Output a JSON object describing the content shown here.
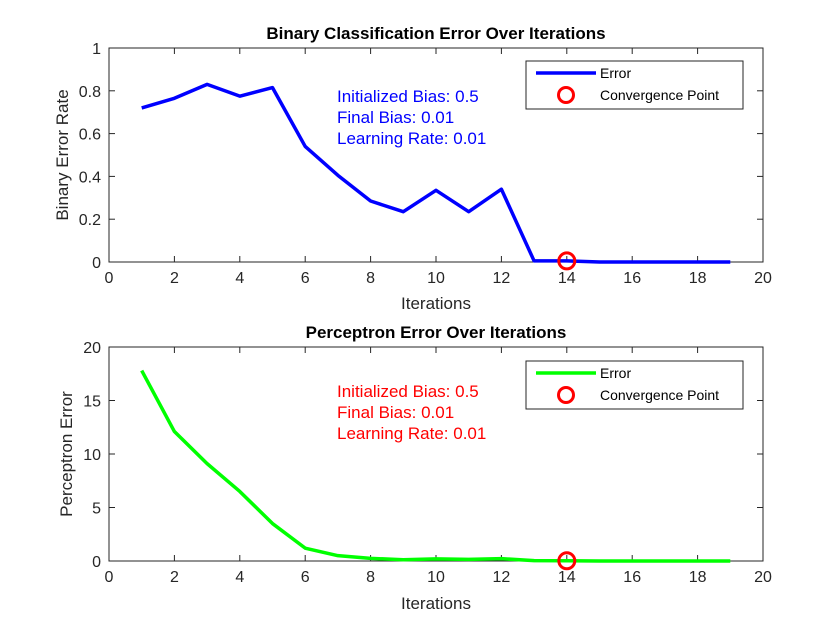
{
  "chart_data": [
    {
      "type": "line",
      "title": "Binary Classification Error Over Iterations",
      "xlabel": "Iterations",
      "ylabel": "Binary Error Rate",
      "xlim": [
        0,
        20
      ],
      "ylim": [
        0,
        1
      ],
      "xticks": [
        0,
        2,
        4,
        6,
        8,
        10,
        12,
        14,
        16,
        18,
        20
      ],
      "yticks": [
        0,
        0.2,
        0.4,
        0.6,
        0.8,
        1
      ],
      "ytick_labels": [
        "0",
        "0.2",
        "0.4",
        "0.6",
        "0.8",
        "1"
      ],
      "grid": false,
      "legend_position": "top-right",
      "series": [
        {
          "name": "Error",
          "color": "#0000ff",
          "x": [
            1,
            2,
            3,
            4,
            5,
            6,
            7,
            8,
            9,
            10,
            11,
            12,
            13,
            14,
            15,
            16,
            17,
            18,
            19
          ],
          "y": [
            0.72,
            0.765,
            0.83,
            0.775,
            0.815,
            0.54,
            0.405,
            0.285,
            0.235,
            0.335,
            0.235,
            0.34,
            0.005,
            0.005,
            0.0,
            0.0,
            0.0,
            0.0,
            0.0
          ]
        }
      ],
      "marker": {
        "name": "Convergence Point",
        "x": 14,
        "y": 0.005,
        "color": "#ff0000"
      },
      "annotation_color": "#0000ff",
      "annotations": [
        "Initialized Bias: 0.5",
        "Final Bias: 0.01",
        "Learning Rate: 0.01"
      ]
    },
    {
      "type": "line",
      "title": "Perceptron Error Over Iterations",
      "xlabel": "Iterations",
      "ylabel": "Perceptron Error",
      "xlim": [
        0,
        20
      ],
      "ylim": [
        0,
        20
      ],
      "xticks": [
        0,
        2,
        4,
        6,
        8,
        10,
        12,
        14,
        16,
        18,
        20
      ],
      "yticks": [
        0,
        5,
        10,
        15,
        20
      ],
      "ytick_labels": [
        "0",
        "5",
        "10",
        "15",
        "20"
      ],
      "grid": false,
      "legend_position": "top-right",
      "series": [
        {
          "name": "Error",
          "color": "#00ff00",
          "x": [
            1,
            2,
            3,
            4,
            5,
            6,
            7,
            8,
            9,
            10,
            11,
            12,
            13,
            14,
            15,
            16,
            17,
            18,
            19
          ],
          "y": [
            17.8,
            12.1,
            9.1,
            6.5,
            3.5,
            1.2,
            0.5,
            0.25,
            0.12,
            0.2,
            0.15,
            0.22,
            0.03,
            0.02,
            0.0,
            0.0,
            0.0,
            0.0,
            0.0
          ]
        }
      ],
      "marker": {
        "name": "Convergence Point",
        "x": 14,
        "y": 0.02,
        "color": "#ff0000"
      },
      "annotation_color": "#ff0000",
      "annotations": [
        "Initialized Bias: 0.5",
        "Final Bias: 0.01",
        "Learning Rate: 0.01"
      ]
    }
  ]
}
